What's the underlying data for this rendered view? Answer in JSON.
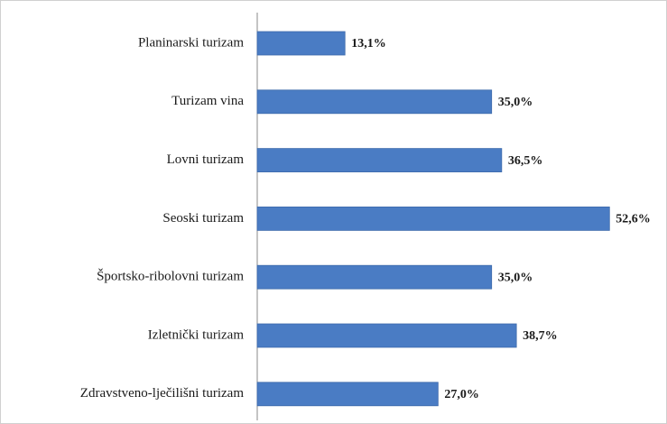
{
  "chart_data": {
    "type": "bar",
    "orientation": "horizontal",
    "categories": [
      "Planinarski turizam",
      "Turizam vina",
      "Lovni turizam",
      "Seoski turizam",
      "Športsko-ribolovni turizam",
      "Izletnički turizam",
      "Zdravstveno-lječilišni turizam"
    ],
    "values": [
      13.1,
      35.0,
      36.5,
      52.6,
      35.0,
      38.7,
      27.0
    ],
    "value_labels": [
      "13,1%",
      "35,0%",
      "36,5%",
      "52,6%",
      "35,0%",
      "38,7%",
      "27,0%"
    ],
    "color": "#4a7cc4"
  }
}
